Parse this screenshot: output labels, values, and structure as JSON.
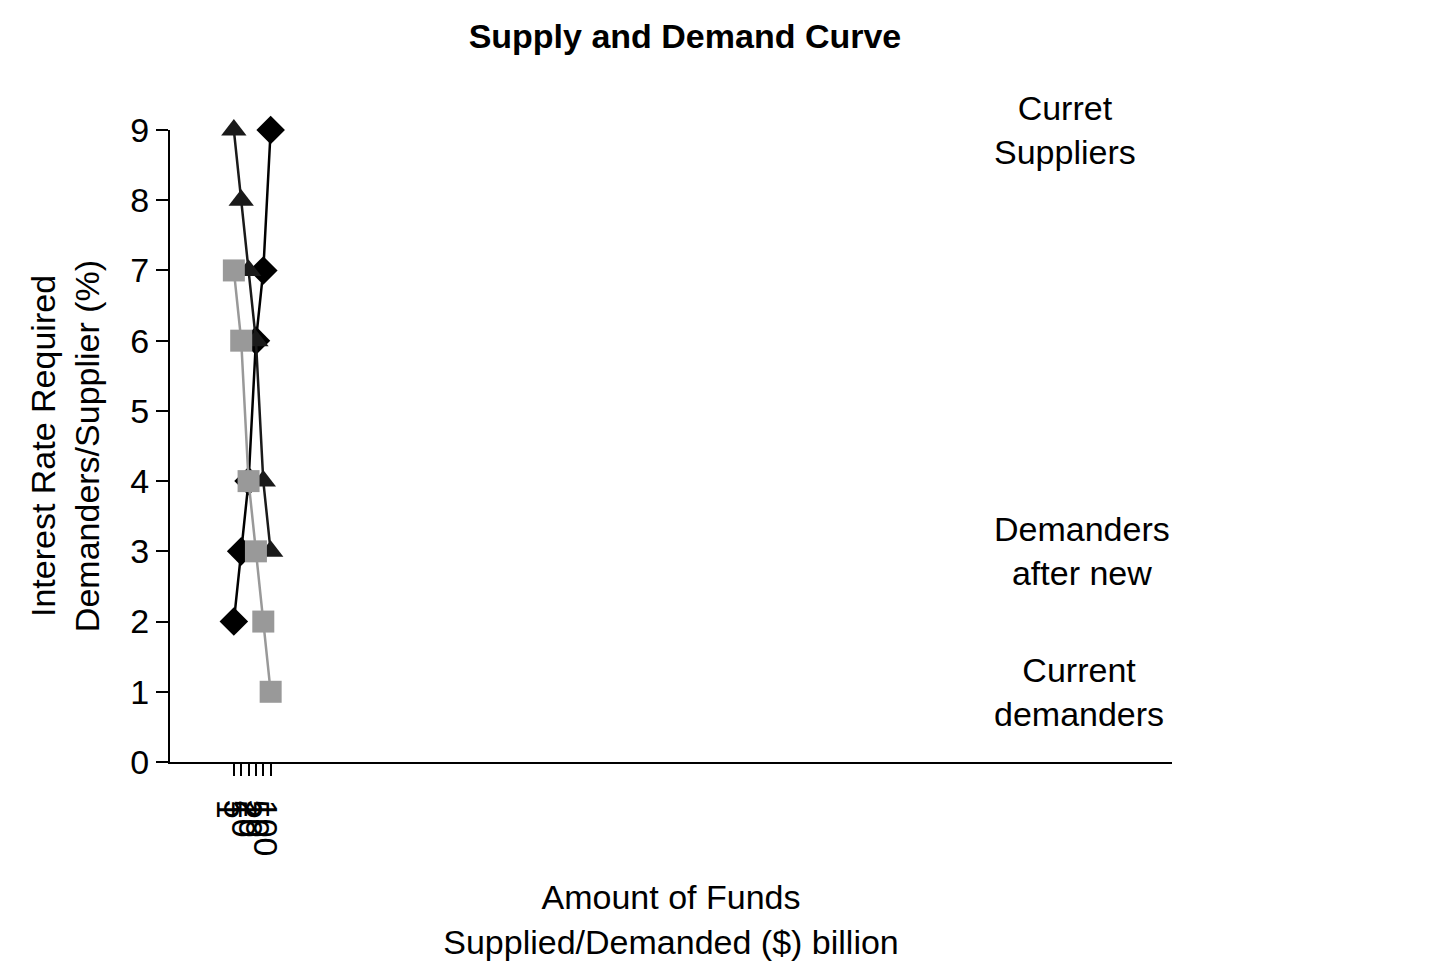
{
  "chart_data": {
    "type": "line",
    "title": "Supply and Demand Curve",
    "x_label": "Amount of Funds\nSupplied/Demanded ($) billion",
    "y_label": "Interest Rate Required\nDemanders/Supplier (%)",
    "categories": [
      "1",
      "5",
      "10",
      "20",
      "50",
      "100"
    ],
    "series": [
      {
        "name": "Curret\nSuppliers",
        "color": "#000000",
        "marker": "diamond",
        "line_style": "solid",
        "values": [
          2,
          3,
          4,
          6,
          7,
          9
        ]
      },
      {
        "name": "Demanders\nafter new",
        "color": "#1a1a1a",
        "marker": "triangle-up",
        "line_style": "solid",
        "values": [
          9,
          8,
          7,
          6,
          4,
          3
        ]
      },
      {
        "name": "Current\ndemanders",
        "color": "#999999",
        "marker": "square",
        "line_style": "solid",
        "values": [
          7,
          6,
          4,
          3,
          2,
          1
        ]
      }
    ],
    "ylim": [
      0,
      9
    ],
    "yticks": [
      0,
      1,
      2,
      3,
      4,
      5,
      6,
      7,
      8,
      9
    ],
    "grid": false
  }
}
